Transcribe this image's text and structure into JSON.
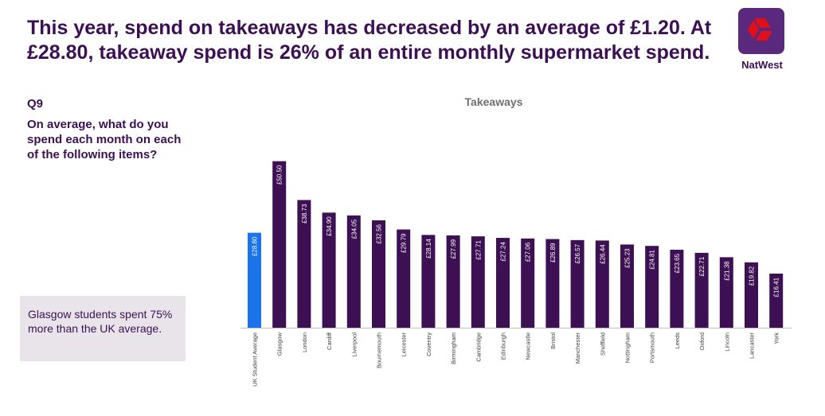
{
  "headline": "This year, spend on takeaways has decreased by an average of £1.20. At £28.80, takeaway spend is 26% of an entire monthly supermarket spend.",
  "brand": {
    "name": "NatWest",
    "color": "#5a287d",
    "accent": "#e0101a"
  },
  "question": {
    "label": "Q9",
    "text": "On average, what do you spend each month on each of the following items?"
  },
  "callout": "Glasgow students spent 75% more than the UK average.",
  "chart_data": {
    "type": "bar",
    "title": "Takeaways",
    "xlabel": "",
    "ylabel": "",
    "ylim": [
      0,
      55
    ],
    "grid": false,
    "categories": [
      "UK Student Average",
      "Glasgow",
      "London",
      "Cardiff",
      "Liverpool",
      "Bournemouth",
      "Leicester",
      "Coventry",
      "Birmingham",
      "Cambridge",
      "Edinburgh",
      "Newcastle",
      "Bristol",
      "Manchester",
      "Sheffield",
      "Nottingham",
      "Portsmouth",
      "Leeds",
      "Oxford",
      "Lincoln",
      "Lancaster",
      "York"
    ],
    "values": [
      28.8,
      50.5,
      38.73,
      34.9,
      34.05,
      32.56,
      29.79,
      28.14,
      27.99,
      27.71,
      27.24,
      27.06,
      26.89,
      26.57,
      26.44,
      25.23,
      24.81,
      23.65,
      22.71,
      21.38,
      19.82,
      16.41
    ],
    "labels": [
      "£28.80",
      "£50.50",
      "£38.73",
      "£34.90",
      "£34.05",
      "£32.56",
      "£29.79",
      "£28.14",
      "£27.99",
      "£27.71",
      "£27.24",
      "£27.06",
      "£26.89",
      "£26.57",
      "£26.44",
      "£25.23",
      "£24.81",
      "£23.65",
      "£22.71",
      "£21.38",
      "£19.82",
      "£16.41"
    ],
    "colors": {
      "highlight": "#1a73e8",
      "default": "#3c1053"
    },
    "highlight_index": 0
  }
}
